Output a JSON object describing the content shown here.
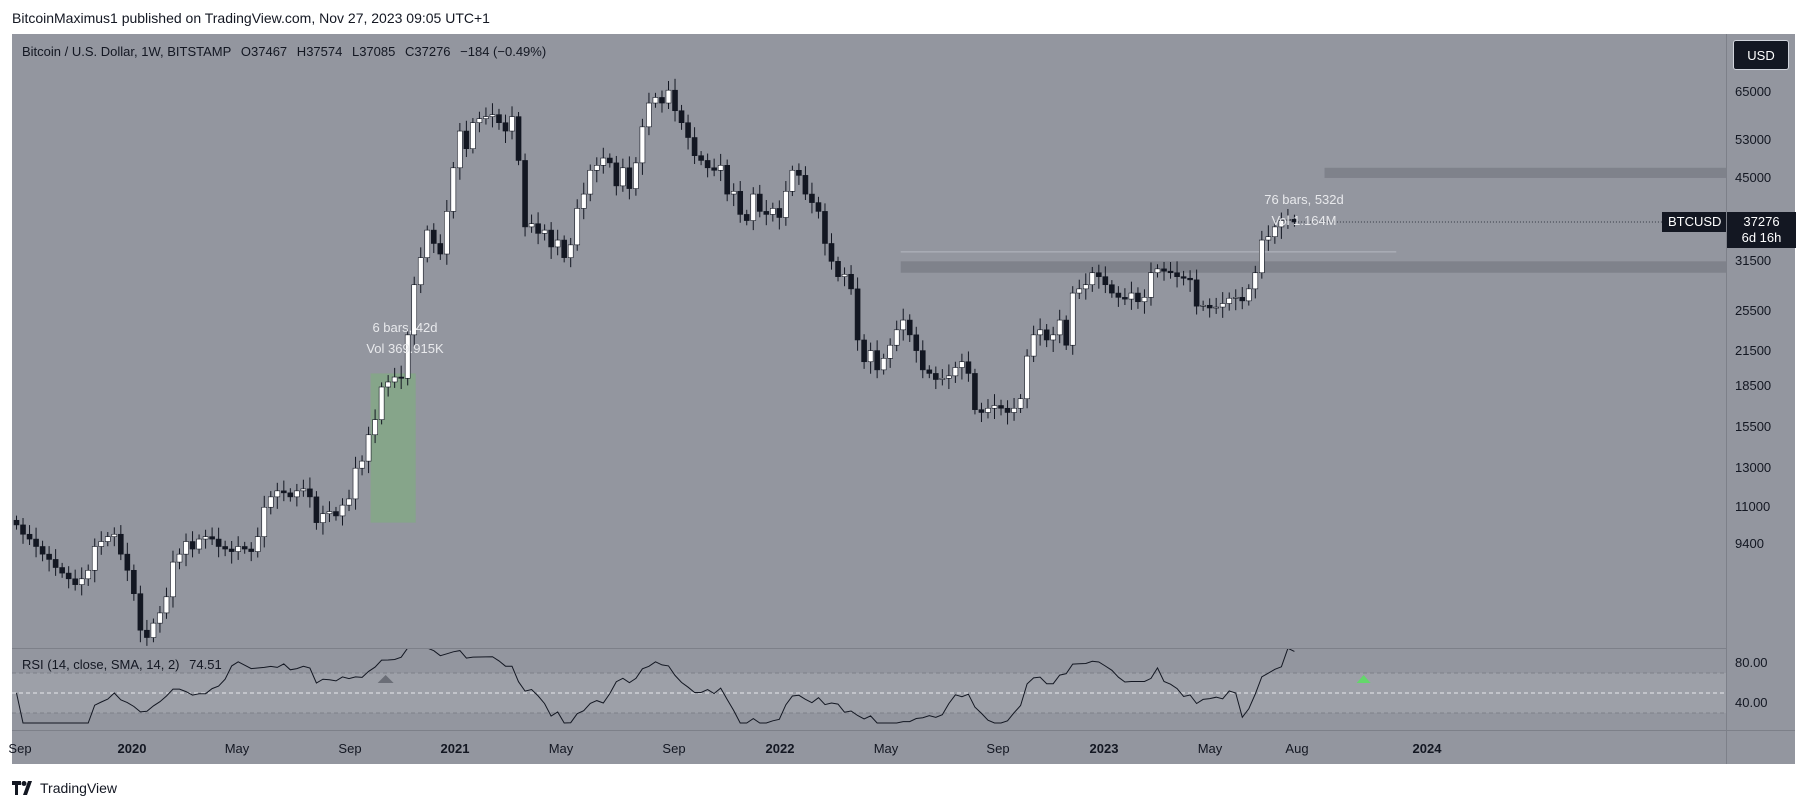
{
  "header": {
    "published": "BitcoinMaximus1 published on TradingView.com, Nov 27, 2023 09:05 UTC+1"
  },
  "legend": {
    "symbol": "Bitcoin / U.S. Dollar, 1W, BITSTAMP",
    "open_label": "O",
    "open": "37467",
    "high_label": "H",
    "high": "37574",
    "low_label": "L",
    "low": "37085",
    "close_label": "C",
    "close": "37276",
    "change": "−184 (−0.49%)"
  },
  "currency_button": "USD",
  "symbol_tag": "BTCUSD",
  "last_price": "37276",
  "countdown": "6d 16h",
  "measure_1": {
    "bars": "6 bars, 42d",
    "vol": "Vol 369.915K"
  },
  "measure_2": {
    "bars": "76 bars, 532d",
    "vol": "Vol 1.164M"
  },
  "rsi": {
    "label": "RSI (14, close, SMA, 14, 2)",
    "value": "74.51"
  },
  "rsi_ticks": [
    "80.00",
    "40.00"
  ],
  "footer": {
    "brand": "TradingView"
  },
  "colors": {
    "background": "#93969f",
    "candle_up": "#ffffff",
    "candle_down": "#131722",
    "zone": "#7f828b",
    "highlight": "#84a886",
    "rsi_band": "#a4a7af"
  },
  "chart_data": {
    "type": "candlestick",
    "title": "Bitcoin / U.S. Dollar, 1W, BITSTAMP",
    "y_scale": "log",
    "y_ticks": [
      65000,
      53000,
      45000,
      31500,
      25500,
      21500,
      18500,
      15500,
      13000,
      11000,
      9400
    ],
    "x_ticks": [
      {
        "label": "Sep",
        "bold": false
      },
      {
        "label": "2020",
        "bold": true
      },
      {
        "label": "May",
        "bold": false
      },
      {
        "label": "Sep",
        "bold": false
      },
      {
        "label": "2021",
        "bold": true
      },
      {
        "label": "May",
        "bold": false
      },
      {
        "label": "Sep",
        "bold": false
      },
      {
        "label": "2022",
        "bold": true
      },
      {
        "label": "May",
        "bold": false
      },
      {
        "label": "Sep",
        "bold": false
      },
      {
        "label": "2023",
        "bold": true
      },
      {
        "label": "May",
        "bold": false
      },
      {
        "label": "Aug",
        "bold": false
      },
      {
        "label": "2024",
        "bold": true
      }
    ],
    "closes": [
      10200,
      9800,
      9600,
      9300,
      9000,
      8800,
      8500,
      8300,
      8100,
      7900,
      8100,
      8400,
      9300,
      9500,
      9700,
      9800,
      9000,
      8400,
      7600,
      6500,
      6300,
      6700,
      7000,
      7500,
      8700,
      9000,
      9500,
      9200,
      9600,
      9700,
      9600,
      9300,
      9200,
      9100,
      9300,
      9200,
      9100,
      9700,
      11000,
      11500,
      11800,
      11700,
      11500,
      11800,
      11900,
      11500,
      10300,
      10700,
      10800,
      10600,
      11100,
      11400,
      13000,
      13400,
      15000,
      16000,
      18400,
      18800,
      19200,
      19100,
      23000,
      28500,
      32000,
      36000,
      34000,
      32500,
      39000,
      47000,
      55000,
      51000,
      57000,
      58000,
      58500,
      59000,
      57000,
      55000,
      58500,
      48500,
      36500,
      37000,
      35500,
      36000,
      33500,
      34500,
      32000,
      33800,
      39500,
      42000,
      46500,
      47500,
      49000,
      48000,
      43500,
      47000,
      43000,
      48000,
      56000,
      62000,
      63500,
      62000,
      65500,
      60000,
      57000,
      53500,
      49500,
      48500,
      47000,
      46500,
      47500,
      42000,
      42500,
      38500,
      37500,
      42000,
      39000,
      38500,
      39500,
      38000,
      42500,
      46500,
      45500,
      42000,
      40500,
      39000,
      34000,
      31500,
      29500,
      29800,
      28000,
      22500,
      20500,
      21500,
      19800,
      20800,
      22000,
      23500,
      24500,
      23000,
      21500,
      19800,
      19500,
      19000,
      19100,
      19300,
      20000,
      20500,
      19500,
      16700,
      16500,
      16800,
      17000,
      16800,
      16500,
      16800,
      17500,
      21000,
      23000,
      23500,
      22500,
      23000,
      24500,
      22000,
      27500,
      28000,
      28500,
      30000,
      29500,
      28500,
      27500,
      27000,
      26800,
      27500,
      26500,
      27000,
      30000,
      30500,
      30200,
      30000,
      29500,
      29300,
      29100,
      26000,
      26100,
      25800,
      25900,
      26300,
      26900,
      27000,
      26600,
      28000,
      30000,
      34500,
      35000,
      36500,
      37500,
      37700,
      37276
    ],
    "zones": [
      {
        "from": 45000,
        "to": 47000,
        "start_week": 201
      },
      {
        "from": 30000,
        "to": 31500,
        "start_week": 136
      }
    ],
    "measurements": [
      {
        "label": "6 bars, 42d",
        "volume": "Vol 369.915K",
        "start_week": 55,
        "end_week": 61
      },
      {
        "label": "76 bars, 532d",
        "volume": "Vol 1.164M",
        "start_week": 136,
        "end_week": 212
      }
    ],
    "rsi": {
      "params": "RSI (14, close, SMA, 14, 2)",
      "last": 74.51,
      "band": [
        30,
        70
      ],
      "mid": 50,
      "ticks": [
        80,
        40
      ]
    }
  }
}
